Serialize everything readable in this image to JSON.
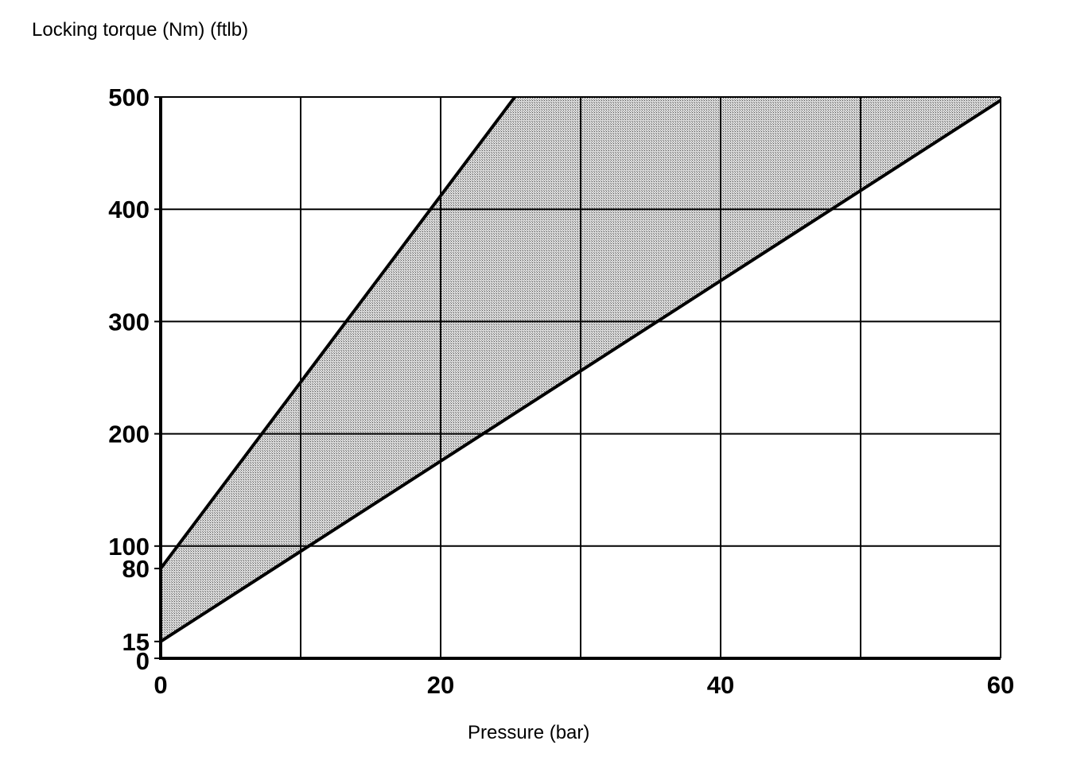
{
  "chart_data": {
    "type": "area",
    "title": "",
    "ylabel": "Locking torque (Nm) (ftlb)",
    "xlabel": "Pressure (bar)",
    "xlim": [
      0,
      60
    ],
    "ylim": [
      0,
      500
    ],
    "x_ticks": [
      0,
      20,
      40,
      60
    ],
    "y_ticks": [
      0,
      15,
      80,
      100,
      200,
      300,
      400,
      500
    ],
    "x_grid": [
      0,
      10,
      20,
      30,
      40,
      50,
      60
    ],
    "y_grid": [
      0,
      100,
      200,
      300,
      400,
      500
    ],
    "grid": true,
    "band": {
      "upper": {
        "x": [
          0,
          25.3
        ],
        "y": [
          80,
          500
        ]
      },
      "lower": {
        "x": [
          0,
          60
        ],
        "y": [
          15,
          497
        ]
      },
      "fill": "#c8c8c8"
    },
    "colors": {
      "line": "#000000",
      "grid": "#000000",
      "fill": "#c8c8c8"
    }
  }
}
